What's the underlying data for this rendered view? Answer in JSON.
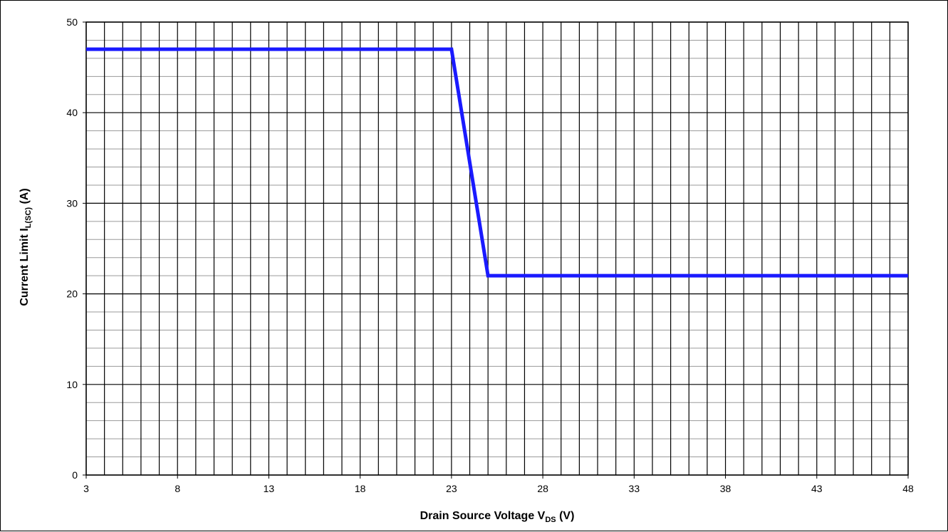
{
  "chart_data": {
    "type": "line",
    "title": "",
    "xlabel": {
      "main": "Drain Source Voltage V",
      "sub": "DS",
      "unit": " (V)"
    },
    "ylabel": {
      "main": "Current Limit I",
      "sub": "L(SC)",
      "unit": " (A)"
    },
    "xlim": [
      3,
      48
    ],
    "ylim": [
      0,
      50
    ],
    "x_ticks": [
      3,
      8,
      13,
      18,
      23,
      28,
      33,
      38,
      43,
      48
    ],
    "y_ticks": [
      0,
      10,
      20,
      30,
      40,
      50
    ],
    "x_minor_step": 1,
    "y_minor_step": 2,
    "grid": true,
    "series": [
      {
        "color": "#1a1aff",
        "x": [
          3,
          23,
          25,
          48
        ],
        "y": [
          47,
          47,
          22,
          22
        ]
      }
    ]
  }
}
